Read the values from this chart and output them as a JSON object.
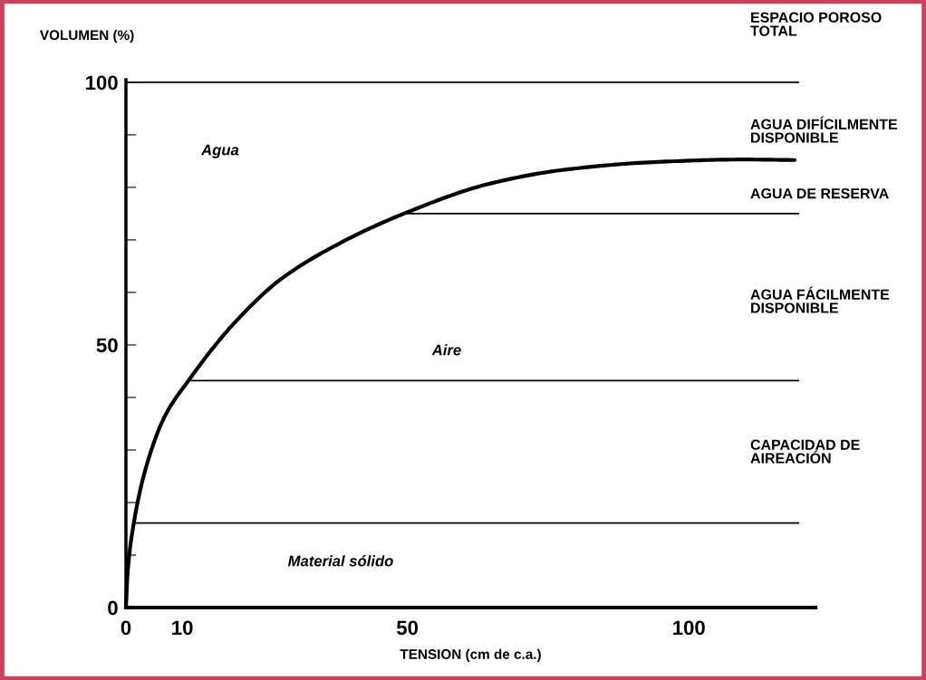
{
  "chart_data": {
    "type": "line",
    "xlabel": "TENSION (cm de c.a.)",
    "ylabel": "VOLUMEN (%)",
    "xlim": [
      0,
      122.5
    ],
    "ylim": [
      0,
      100.5
    ],
    "xticks": [
      0,
      10,
      50,
      100
    ],
    "yticks": [
      0,
      {
        "value": 10,
        "label": null
      },
      {
        "value": 20,
        "label": null
      },
      {
        "value": 30,
        "label": null
      },
      {
        "value": 40,
        "label": null
      },
      50,
      {
        "value": 60,
        "label": null
      },
      {
        "value": 70,
        "label": null
      },
      {
        "value": 80,
        "label": null
      },
      {
        "value": 90,
        "label": null
      },
      100
    ],
    "marker": "none",
    "line_style": "solid",
    "series": [
      {
        "color": "#000000",
        "x": [
          0,
          0.3,
          1.4,
          3.6,
          6.9,
          11.1,
          19.2,
          27.5,
          38.6,
          49.4,
          64.6,
          77.5,
          93.6,
          109.7,
          118.8
        ],
        "values": [
          0,
          6.6,
          16.1,
          26.8,
          36.4,
          43.2,
          54.1,
          62.5,
          69.7,
          75,
          80.7,
          83.3,
          84.8,
          85.3,
          85.2
        ]
      },
      {
        "color": "#000000",
        "x": [
          0,
          119.5
        ],
        "values": [
          100,
          100
        ]
      },
      {
        "color": "#000000",
        "x": [
          49.4,
          119.5
        ],
        "values": [
          75,
          75
        ]
      },
      {
        "color": "#000000",
        "x": [
          11.1,
          119.5
        ],
        "values": [
          43.2,
          43.2
        ]
      },
      {
        "color": "#000000",
        "x": [
          1.4,
          119.5
        ],
        "values": [
          16.1,
          16.1
        ]
      }
    ],
    "annotations": [
      "Agua",
      "Aire",
      "Material sólido",
      "ESPACIO POROSO\nTOTAL",
      "AGUA DIFÍCILMENTE\nDISPONIBLE",
      "AGUA DE RESERVA",
      "AGUA FÁCILMENTE\nDISPONIBLE",
      "CAPACIDAD DE\nAIREACIÓN"
    ]
  }
}
